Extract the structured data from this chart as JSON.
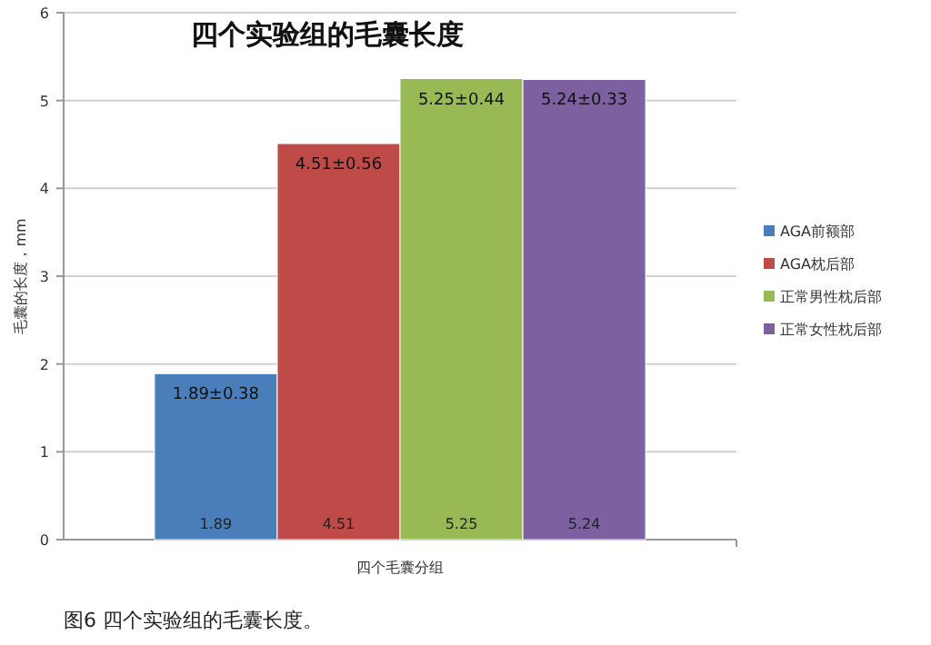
{
  "chart_data": {
    "type": "bar",
    "title": "四个实验组的毛囊长度",
    "xlabel": "四个毛囊分组",
    "ylabel": "毛囊的长度，mm",
    "categories": [
      null
    ],
    "series": [
      {
        "name": "AGA前额部",
        "color": "#4a7ebb",
        "values": [
          1.89
        ]
      },
      {
        "name": "AGA枕后部",
        "color": "#be4b48",
        "values": [
          4.51
        ]
      },
      {
        "name": "正常男性枕后部",
        "color": "#98b954",
        "values": [
          5.25
        ]
      },
      {
        "name": "正常女性枕后部",
        "color": "#7d60a0",
        "values": [
          5.24
        ]
      }
    ],
    "ylim": [
      0,
      6
    ],
    "yticks": [
      0,
      1,
      2,
      3,
      4,
      5,
      6
    ],
    "grid": "y",
    "legend": "right",
    "data_labels": true,
    "annotations": [
      {
        "text": "1.89±0.38",
        "y": 1.89
      },
      {
        "text": "4.51±0.56",
        "y": 4.51
      },
      {
        "text": "5.25±0.44",
        "y": 5.25
      },
      {
        "text": "5.24±0.33",
        "y": 5.24
      },
      "图6 四个实验组的毛囊长度。"
    ]
  }
}
